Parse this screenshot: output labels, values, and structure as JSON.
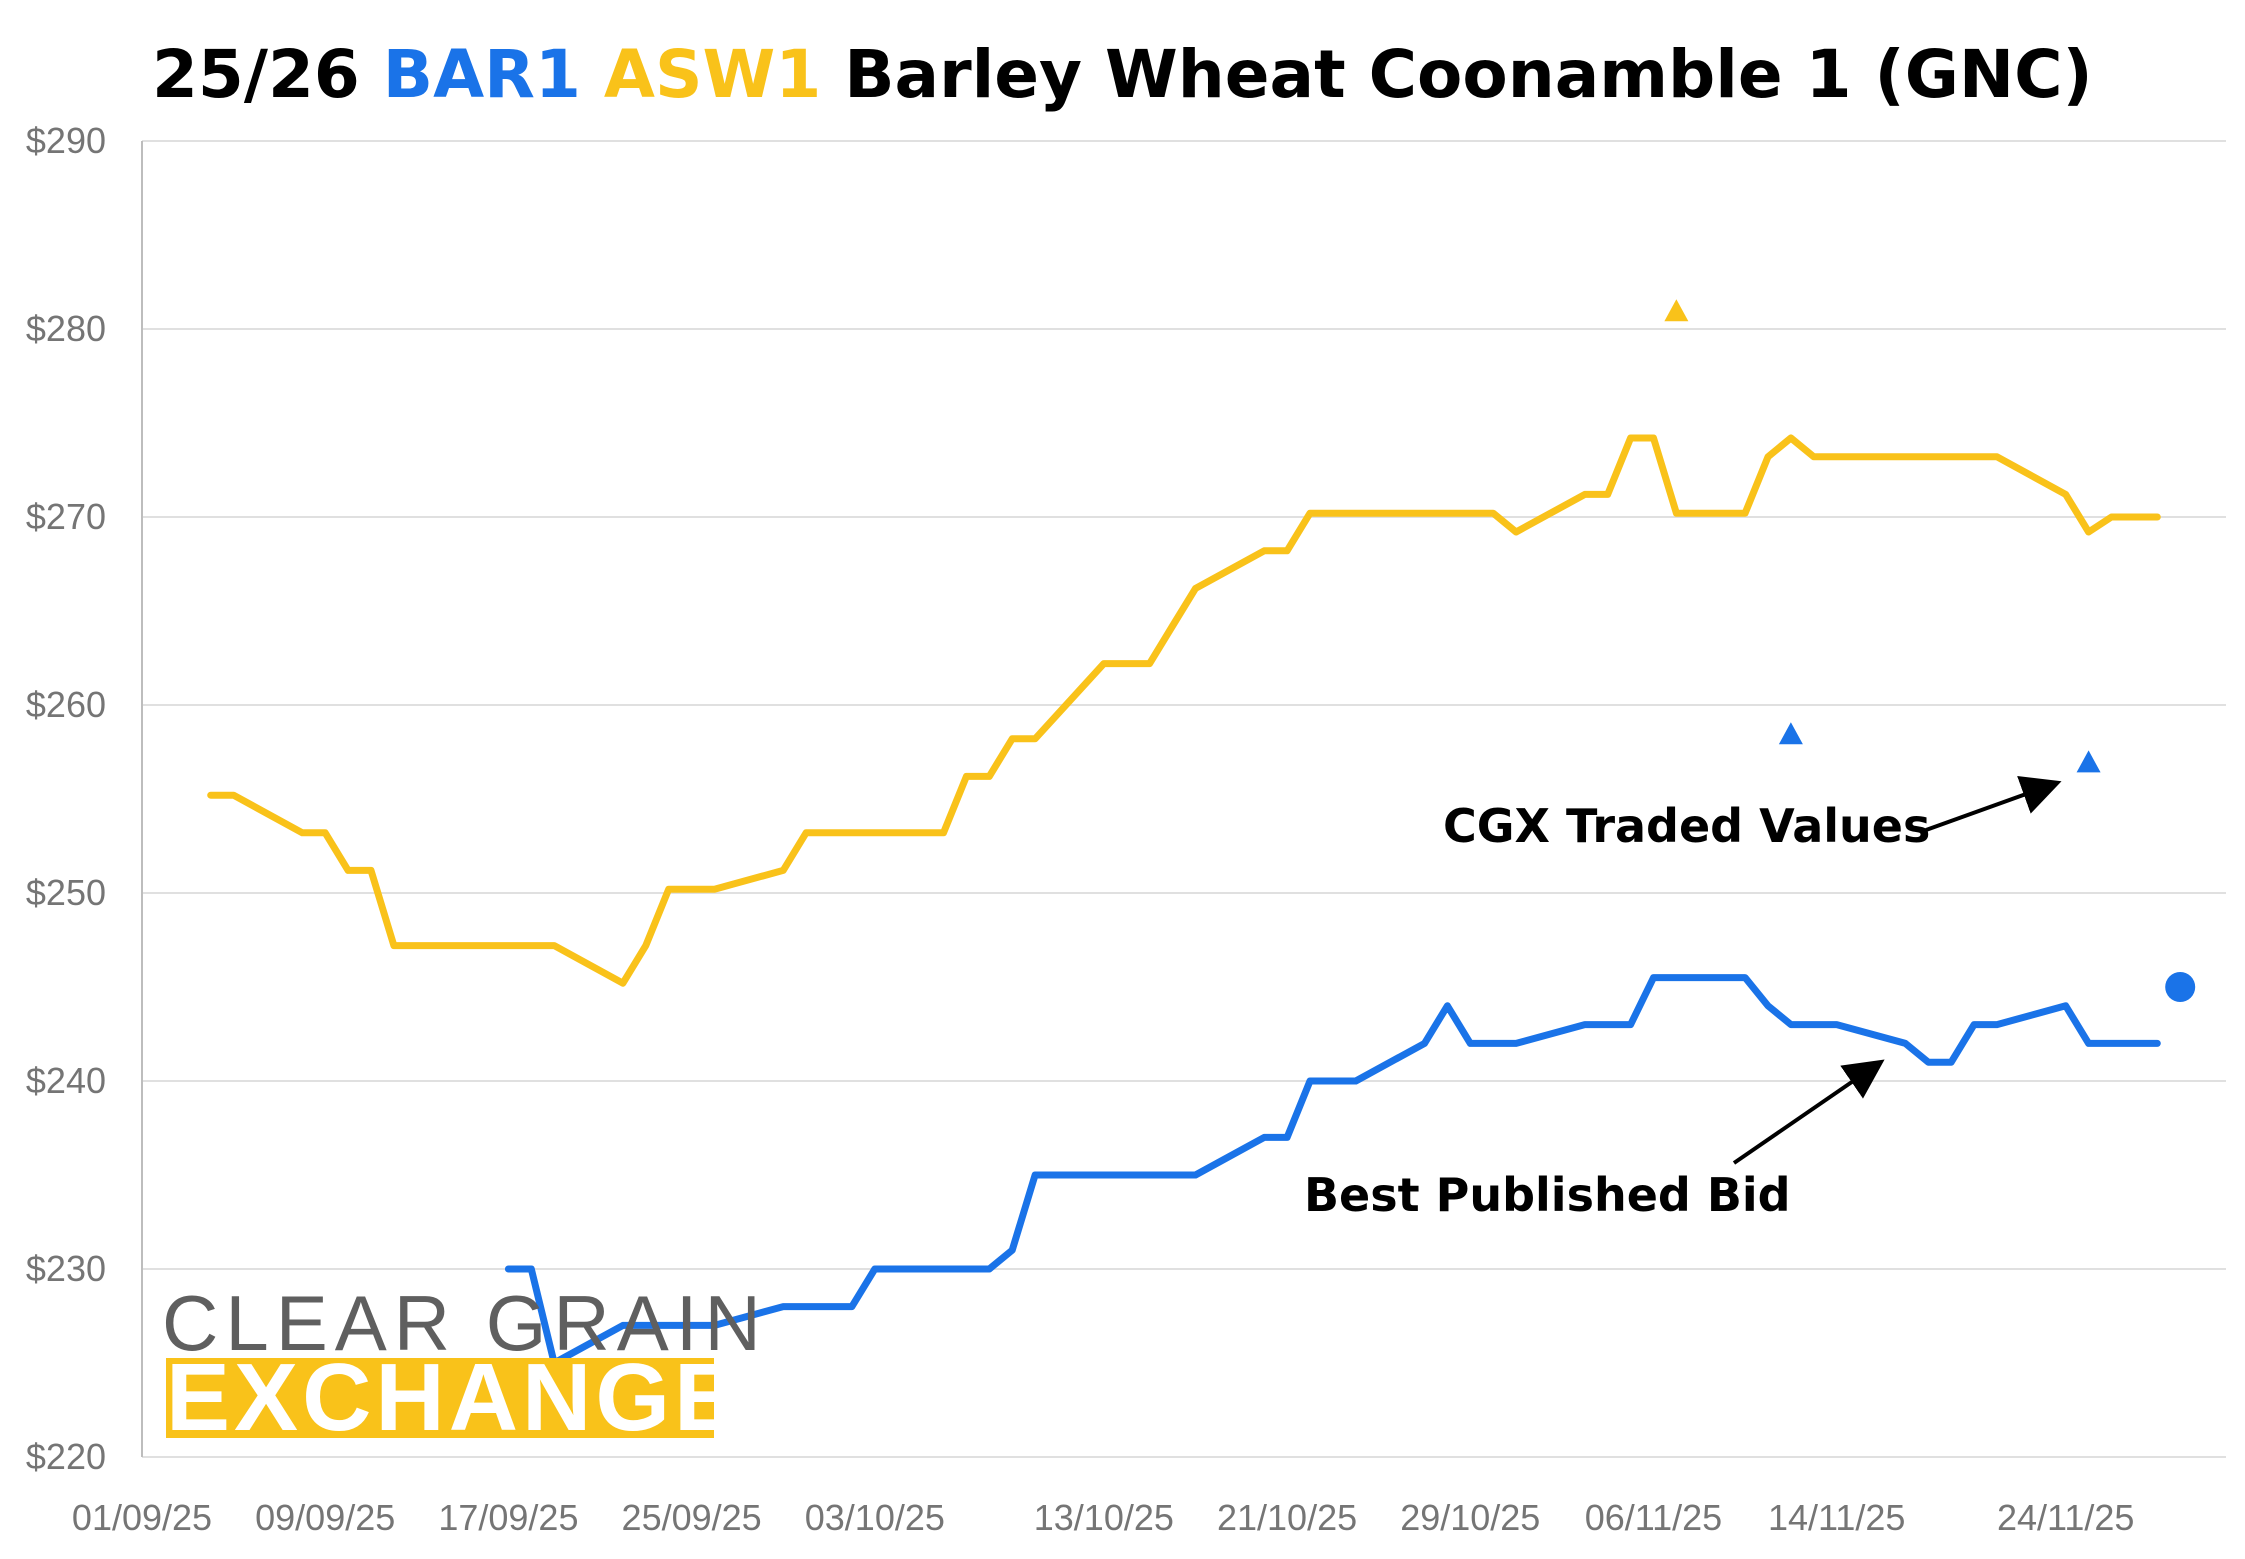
{
  "chart_data": {
    "type": "line",
    "title": {
      "prefix": "25/26 ",
      "part_bar": "BAR1",
      "space": " ",
      "part_asw": "ASW1",
      "suffix": " Barley Wheat Coonamble 1 (GNC)"
    },
    "ylim": [
      220,
      290
    ],
    "ytick_labels": [
      "$220",
      "$230",
      "$240",
      "$250",
      "$260",
      "$270",
      "$280",
      "$290"
    ],
    "yticks": [
      220,
      230,
      240,
      250,
      260,
      270,
      280,
      290
    ],
    "xlim": [
      "2025-09-01",
      "2025-12-01"
    ],
    "xticks": [
      "2025-09-01",
      "2025-09-09",
      "2025-09-17",
      "2025-09-25",
      "2025-10-03",
      "2025-10-13",
      "2025-10-21",
      "2025-10-29",
      "2025-11-06",
      "2025-11-14",
      "2025-11-24"
    ],
    "xtick_labels": [
      "01/09/25",
      "09/09/25",
      "17/09/25",
      "25/09/25",
      "03/10/25",
      "13/10/25",
      "21/10/25",
      "29/10/25",
      "06/11/25",
      "14/11/25",
      "24/11/25"
    ],
    "grid": true,
    "series": [
      {
        "name": "ASW1",
        "color": "#F9C21A",
        "points": [
          [
            "2025-09-04",
            255.2
          ],
          [
            "2025-09-05",
            255.2
          ],
          [
            "2025-09-08",
            253.2
          ],
          [
            "2025-09-09",
            253.2
          ],
          [
            "2025-09-10",
            251.2
          ],
          [
            "2025-09-11",
            251.2
          ],
          [
            "2025-09-12",
            247.2
          ],
          [
            "2025-09-15",
            247.2
          ],
          [
            "2025-09-17",
            247.2
          ],
          [
            "2025-09-18",
            247.2
          ],
          [
            "2025-09-19",
            247.2
          ],
          [
            "2025-09-22",
            245.2
          ],
          [
            "2025-09-23",
            247.2
          ],
          [
            "2025-09-24",
            250.2
          ],
          [
            "2025-09-25",
            250.2
          ],
          [
            "2025-09-26",
            250.2
          ],
          [
            "2025-09-29",
            251.2
          ],
          [
            "2025-09-30",
            253.2
          ],
          [
            "2025-10-01",
            253.2
          ],
          [
            "2025-10-02",
            253.2
          ],
          [
            "2025-10-03",
            253.2
          ],
          [
            "2025-10-06",
            253.2
          ],
          [
            "2025-10-07",
            256.2
          ],
          [
            "2025-10-08",
            256.2
          ],
          [
            "2025-10-09",
            258.2
          ],
          [
            "2025-10-10",
            258.2
          ],
          [
            "2025-10-13",
            262.2
          ],
          [
            "2025-10-14",
            262.2
          ],
          [
            "2025-10-15",
            262.2
          ],
          [
            "2025-10-16",
            264.2
          ],
          [
            "2025-10-17",
            266.2
          ],
          [
            "2025-10-20",
            268.2
          ],
          [
            "2025-10-21",
            268.2
          ],
          [
            "2025-10-22",
            270.2
          ],
          [
            "2025-10-23",
            270.2
          ],
          [
            "2025-10-24",
            270.2
          ],
          [
            "2025-10-27",
            270.2
          ],
          [
            "2025-10-28",
            270.2
          ],
          [
            "2025-10-29",
            270.2
          ],
          [
            "2025-10-30",
            270.2
          ],
          [
            "2025-10-31",
            269.2
          ],
          [
            "2025-11-03",
            271.2
          ],
          [
            "2025-11-04",
            271.2
          ],
          [
            "2025-11-05",
            274.2
          ],
          [
            "2025-11-06",
            274.2
          ],
          [
            "2025-11-07",
            270.2
          ],
          [
            "2025-11-10",
            270.2
          ],
          [
            "2025-11-11",
            273.2
          ],
          [
            "2025-11-12",
            274.2
          ],
          [
            "2025-11-13",
            273.2
          ],
          [
            "2025-11-14",
            273.2
          ],
          [
            "2025-11-17",
            273.2
          ],
          [
            "2025-11-18",
            273.2
          ],
          [
            "2025-11-19",
            273.2
          ],
          [
            "2025-11-20",
            273.2
          ],
          [
            "2025-11-21",
            273.2
          ],
          [
            "2025-11-24",
            271.2
          ],
          [
            "2025-11-25",
            269.2
          ],
          [
            "2025-11-26",
            270.0
          ],
          [
            "2025-11-27",
            270.0
          ],
          [
            "2025-11-28",
            270.0
          ]
        ]
      },
      {
        "name": "BAR1",
        "color": "#1A73E8",
        "points": [
          [
            "2025-09-17",
            230.0
          ],
          [
            "2025-09-18",
            230.0
          ],
          [
            "2025-09-19",
            225.0
          ],
          [
            "2025-09-22",
            227.0
          ],
          [
            "2025-09-23",
            227.0
          ],
          [
            "2025-09-24",
            227.0
          ],
          [
            "2025-09-25",
            227.0
          ],
          [
            "2025-09-26",
            227.0
          ],
          [
            "2025-09-29",
            228.0
          ],
          [
            "2025-09-30",
            228.0
          ],
          [
            "2025-10-01",
            228.0
          ],
          [
            "2025-10-02",
            228.0
          ],
          [
            "2025-10-03",
            230.0
          ],
          [
            "2025-10-06",
            230.0
          ],
          [
            "2025-10-07",
            230.0
          ],
          [
            "2025-10-08",
            230.0
          ],
          [
            "2025-10-09",
            231.0
          ],
          [
            "2025-10-10",
            235.0
          ],
          [
            "2025-10-13",
            235.0
          ],
          [
            "2025-10-14",
            235.0
          ],
          [
            "2025-10-15",
            235.0
          ],
          [
            "2025-10-16",
            235.0
          ],
          [
            "2025-10-17",
            235.0
          ],
          [
            "2025-10-20",
            237.0
          ],
          [
            "2025-10-21",
            237.0
          ],
          [
            "2025-10-22",
            240.0
          ],
          [
            "2025-10-23",
            240.0
          ],
          [
            "2025-10-24",
            240.0
          ],
          [
            "2025-10-27",
            242.0
          ],
          [
            "2025-10-28",
            244.0
          ],
          [
            "2025-10-29",
            242.0
          ],
          [
            "2025-10-30",
            242.0
          ],
          [
            "2025-10-31",
            242.0
          ],
          [
            "2025-11-03",
            243.0
          ],
          [
            "2025-11-04",
            243.0
          ],
          [
            "2025-11-05",
            243.0
          ],
          [
            "2025-11-06",
            245.5
          ],
          [
            "2025-11-07",
            245.5
          ],
          [
            "2025-11-10",
            245.5
          ],
          [
            "2025-11-11",
            244.0
          ],
          [
            "2025-11-12",
            243.0
          ],
          [
            "2025-11-13",
            243.0
          ],
          [
            "2025-11-14",
            243.0
          ],
          [
            "2025-11-17",
            242.0
          ],
          [
            "2025-11-18",
            241.0
          ],
          [
            "2025-11-19",
            241.0
          ],
          [
            "2025-11-20",
            243.0
          ],
          [
            "2025-11-21",
            243.0
          ],
          [
            "2025-11-24",
            244.0
          ],
          [
            "2025-11-25",
            242.0
          ],
          [
            "2025-11-26",
            242.0
          ],
          [
            "2025-11-27",
            242.0
          ],
          [
            "2025-11-28",
            242.0
          ]
        ]
      }
    ],
    "traded_values": [
      {
        "series": "ASW1",
        "date": "2025-11-07",
        "value": 281.0,
        "marker": "triangle"
      },
      {
        "series": "BAR1",
        "date": "2025-11-12",
        "value": 258.5,
        "marker": "triangle"
      },
      {
        "series": "BAR1",
        "date": "2025-11-25",
        "value": 257.0,
        "marker": "triangle"
      },
      {
        "series": "BAR1",
        "date": "2025-11-29",
        "value": 245.0,
        "marker": "circle"
      }
    ],
    "annotations": {
      "traded": "CGX Traded Values",
      "bid": "Best Published Bid"
    },
    "logo": {
      "line1": "CLEAR GRAIN",
      "line2": "EXCHANGE",
      "accent_color": "#F9C21A",
      "text_color": "#5f5f5f"
    },
    "colors": {
      "title": "#000000",
      "bar1": "#1A73E8",
      "asw1": "#F9C21A",
      "grid": "#E0E0E0",
      "axis": "#BDBDBD"
    }
  }
}
